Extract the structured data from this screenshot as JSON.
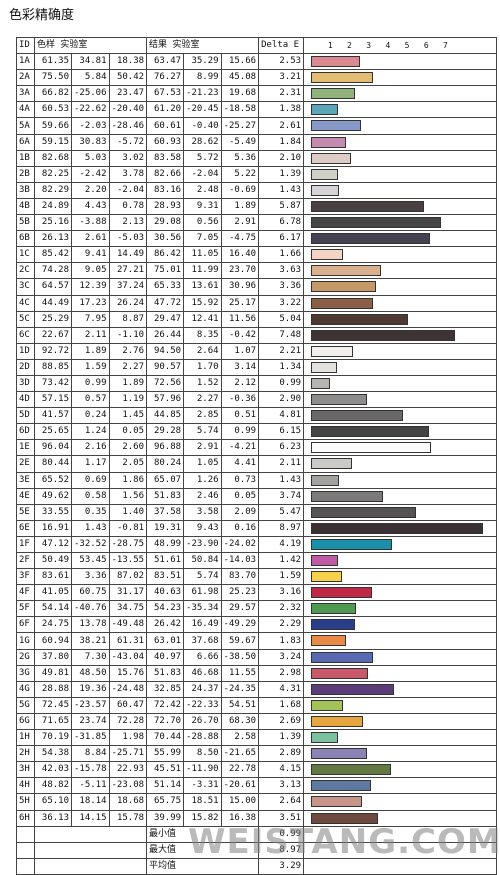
{
  "title": "色彩精确度",
  "watermark": "WEISTANG.COM",
  "headers": {
    "id": "ID",
    "target": "色样 实验室",
    "result": "结果 实验室",
    "delta": "Delta E"
  },
  "scale_ticks": [
    "1",
    "2",
    "3",
    "4",
    "5",
    "6",
    "7"
  ],
  "rows": [
    {
      "id": "1A",
      "t": [
        "61.35",
        "34.81",
        "18.38"
      ],
      "r": [
        "63.47",
        "35.29",
        "15.66"
      ],
      "de": "2.53",
      "color": "#d98a90"
    },
    {
      "id": "2A",
      "t": [
        "75.50",
        "5.84",
        "50.42"
      ],
      "r": [
        "76.27",
        "8.99",
        "45.08"
      ],
      "de": "3.21",
      "color": "#e2bc72"
    },
    {
      "id": "3A",
      "t": [
        "66.82",
        "-25.06",
        "23.47"
      ],
      "r": [
        "67.53",
        "-21.23",
        "19.68"
      ],
      "de": "2.31",
      "color": "#8fb37a"
    },
    {
      "id": "4A",
      "t": [
        "60.53",
        "-22.62",
        "-20.40"
      ],
      "r": [
        "61.20",
        "-20.45",
        "-18.58"
      ],
      "de": "1.38",
      "color": "#5ba5b8"
    },
    {
      "id": "5A",
      "t": [
        "59.66",
        "-2.03",
        "-28.46"
      ],
      "r": [
        "60.61",
        "-0.40",
        "-25.27"
      ],
      "de": "2.61",
      "color": "#8799c8"
    },
    {
      "id": "6A",
      "t": [
        "59.15",
        "30.83",
        "-5.72"
      ],
      "r": [
        "60.93",
        "28.62",
        "-5.49"
      ],
      "de": "1.84",
      "color": "#c58ab0"
    },
    {
      "id": "1B",
      "t": [
        "82.68",
        "5.03",
        "3.02"
      ],
      "r": [
        "83.58",
        "5.72",
        "5.36"
      ],
      "de": "2.10",
      "color": "#ddcdc6"
    },
    {
      "id": "2B",
      "t": [
        "82.25",
        "-2.42",
        "3.78"
      ],
      "r": [
        "82.66",
        "-2.04",
        "5.22"
      ],
      "de": "1.39",
      "color": "#cfd0c6"
    },
    {
      "id": "3B",
      "t": [
        "82.29",
        "2.20",
        "-2.04"
      ],
      "r": [
        "83.16",
        "2.48",
        "-0.69"
      ],
      "de": "1.43",
      "color": "#d6d2d6"
    },
    {
      "id": "4B",
      "t": [
        "24.89",
        "4.43",
        "0.78"
      ],
      "r": [
        "28.93",
        "9.31",
        "1.89"
      ],
      "de": "5.87",
      "color": "#4a4041"
    },
    {
      "id": "5B",
      "t": [
        "25.16",
        "-3.88",
        "2.13"
      ],
      "r": [
        "29.08",
        "0.56",
        "2.91"
      ],
      "de": "6.78",
      "color": "#464646"
    },
    {
      "id": "6B",
      "t": [
        "26.13",
        "2.61",
        "-5.03"
      ],
      "r": [
        "30.56",
        "7.05",
        "-4.75"
      ],
      "de": "6.17",
      "color": "#454254"
    },
    {
      "id": "1C",
      "t": [
        "85.42",
        "9.41",
        "14.49"
      ],
      "r": [
        "86.42",
        "11.05",
        "16.40"
      ],
      "de": "1.66",
      "color": "#f3d3c2"
    },
    {
      "id": "2C",
      "t": [
        "74.28",
        "9.05",
        "27.21"
      ],
      "r": [
        "75.01",
        "11.99",
        "23.70"
      ],
      "de": "3.63",
      "color": "#d8b08e"
    },
    {
      "id": "3C",
      "t": [
        "64.57",
        "12.39",
        "37.24"
      ],
      "r": [
        "65.33",
        "13.61",
        "30.96"
      ],
      "de": "3.36",
      "color": "#c59868"
    },
    {
      "id": "4C",
      "t": [
        "44.49",
        "17.23",
        "26.24"
      ],
      "r": [
        "47.72",
        "15.92",
        "25.17"
      ],
      "de": "3.22",
      "color": "#8a5f46"
    },
    {
      "id": "5C",
      "t": [
        "25.29",
        "7.95",
        "8.87"
      ],
      "r": [
        "29.47",
        "12.41",
        "11.56"
      ],
      "de": "5.04",
      "color": "#4e3a32"
    },
    {
      "id": "6C",
      "t": [
        "22.67",
        "2.11",
        "-1.10"
      ],
      "r": [
        "26.44",
        "8.35",
        "-0.42"
      ],
      "de": "7.48",
      "color": "#3f3434"
    },
    {
      "id": "1D",
      "t": [
        "92.72",
        "1.89",
        "2.76"
      ],
      "r": [
        "94.50",
        "2.64",
        "1.07"
      ],
      "de": "2.21",
      "color": "#f2efec"
    },
    {
      "id": "2D",
      "t": [
        "88.85",
        "1.59",
        "2.27"
      ],
      "r": [
        "90.57",
        "1.70",
        "3.14"
      ],
      "de": "1.34",
      "color": "#e3e2de"
    },
    {
      "id": "3D",
      "t": [
        "73.42",
        "0.99",
        "1.89"
      ],
      "r": [
        "72.56",
        "1.52",
        "2.12"
      ],
      "de": "0.99",
      "color": "#b5b4b1"
    },
    {
      "id": "4D",
      "t": [
        "57.15",
        "0.57",
        "1.19"
      ],
      "r": [
        "57.96",
        "2.27",
        "-0.36"
      ],
      "de": "2.90",
      "color": "#8d8c8a"
    },
    {
      "id": "5D",
      "t": [
        "41.57",
        "0.24",
        "1.45"
      ],
      "r": [
        "44.85",
        "2.85",
        "0.51"
      ],
      "de": "4.81",
      "color": "#6a6868"
    },
    {
      "id": "6D",
      "t": [
        "25.65",
        "1.24",
        "0.05"
      ],
      "r": [
        "29.28",
        "5.74",
        "0.99"
      ],
      "de": "6.15",
      "color": "#454343"
    },
    {
      "id": "1E",
      "t": [
        "96.04",
        "2.16",
        "2.60"
      ],
      "r": [
        "96.88",
        "2.91",
        "-4.21"
      ],
      "de": "6.23",
      "color": "#fbfbfb"
    },
    {
      "id": "2E",
      "t": [
        "80.44",
        "1.17",
        "2.05"
      ],
      "r": [
        "80.24",
        "1.05",
        "4.41"
      ],
      "de": "2.11",
      "color": "#cbcac7"
    },
    {
      "id": "3E",
      "t": [
        "65.52",
        "0.69",
        "1.86"
      ],
      "r": [
        "65.07",
        "1.26",
        "0.73"
      ],
      "de": "1.43",
      "color": "#a2a1a0"
    },
    {
      "id": "4E",
      "t": [
        "49.62",
        "0.58",
        "1.56"
      ],
      "r": [
        "51.83",
        "2.46",
        "0.05"
      ],
      "de": "3.74",
      "color": "#7b7a79"
    },
    {
      "id": "5E",
      "t": [
        "33.55",
        "0.35",
        "1.40"
      ],
      "r": [
        "37.58",
        "3.58",
        "2.09"
      ],
      "de": "5.47",
      "color": "#555353"
    },
    {
      "id": "6E",
      "t": [
        "16.91",
        "1.43",
        "-0.81"
      ],
      "r": [
        "19.31",
        "9.43",
        "0.16"
      ],
      "de": "8.97",
      "color": "#3b3033"
    },
    {
      "id": "1F",
      "t": [
        "47.12",
        "-32.52",
        "-28.75"
      ],
      "r": [
        "48.99",
        "-23.90",
        "-24.02"
      ],
      "de": "4.19",
      "color": "#1b8fa8"
    },
    {
      "id": "2F",
      "t": [
        "50.49",
        "53.45",
        "-13.55"
      ],
      "r": [
        "51.61",
        "50.84",
        "-14.03"
      ],
      "de": "1.42",
      "color": "#c15aa5"
    },
    {
      "id": "3F",
      "t": [
        "83.61",
        "3.36",
        "87.02"
      ],
      "r": [
        "83.51",
        "5.74",
        "83.70"
      ],
      "de": "1.59",
      "color": "#f5d24a"
    },
    {
      "id": "4F",
      "t": [
        "41.05",
        "60.75",
        "31.17"
      ],
      "r": [
        "40.63",
        "61.98",
        "25.23"
      ],
      "de": "3.16",
      "color": "#c02848"
    },
    {
      "id": "5F",
      "t": [
        "54.14",
        "-40.76",
        "34.75"
      ],
      "r": [
        "54.23",
        "-35.34",
        "29.57"
      ],
      "de": "2.32",
      "color": "#4e9a4e"
    },
    {
      "id": "6F",
      "t": [
        "24.75",
        "13.78",
        "-49.48"
      ],
      "r": [
        "26.42",
        "16.49",
        "-49.29"
      ],
      "de": "2.29",
      "color": "#2a3f8c"
    },
    {
      "id": "1G",
      "t": [
        "60.94",
        "38.21",
        "61.31"
      ],
      "r": [
        "63.01",
        "37.68",
        "59.67"
      ],
      "de": "1.83",
      "color": "#e88a45"
    },
    {
      "id": "2G",
      "t": [
        "37.80",
        "7.30",
        "-43.04"
      ],
      "r": [
        "40.97",
        "6.66",
        "-38.50"
      ],
      "de": "3.24",
      "color": "#5a6ab0"
    },
    {
      "id": "3G",
      "t": [
        "49.81",
        "48.50",
        "15.76"
      ],
      "r": [
        "51.83",
        "46.68",
        "11.55"
      ],
      "de": "2.98",
      "color": "#c8586a"
    },
    {
      "id": "4G",
      "t": [
        "28.88",
        "19.36",
        "-24.48"
      ],
      "r": [
        "32.85",
        "24.37",
        "-24.35"
      ],
      "de": "4.31",
      "color": "#5b3d7a"
    },
    {
      "id": "5G",
      "t": [
        "72.45",
        "-23.57",
        "60.47"
      ],
      "r": [
        "72.42",
        "-22.33",
        "54.51"
      ],
      "de": "1.68",
      "color": "#a3c25a"
    },
    {
      "id": "6G",
      "t": [
        "71.65",
        "23.74",
        "72.28"
      ],
      "r": [
        "72.70",
        "26.70",
        "68.30"
      ],
      "de": "2.69",
      "color": "#e8a640"
    },
    {
      "id": "1H",
      "t": [
        "70.19",
        "-31.85",
        "1.98"
      ],
      "r": [
        "70.44",
        "-28.88",
        "2.58"
      ],
      "de": "1.39",
      "color": "#7cc1a0"
    },
    {
      "id": "2H",
      "t": [
        "54.38",
        "8.84",
        "-25.71"
      ],
      "r": [
        "55.99",
        "8.50",
        "-21.65"
      ],
      "de": "2.89",
      "color": "#8a84b4"
    },
    {
      "id": "3H",
      "t": [
        "42.03",
        "-15.78",
        "22.93"
      ],
      "r": [
        "45.51",
        "-11.90",
        "22.78"
      ],
      "de": "4.15",
      "color": "#627a42"
    },
    {
      "id": "4H",
      "t": [
        "48.82",
        "-5.11",
        "-23.08"
      ],
      "r": [
        "51.14",
        "-3.31",
        "-20.61"
      ],
      "de": "3.13",
      "color": "#5e7aa0"
    },
    {
      "id": "5H",
      "t": [
        "65.10",
        "18.14",
        "18.68"
      ],
      "r": [
        "65.75",
        "18.51",
        "15.00"
      ],
      "de": "2.64",
      "color": "#c7958a"
    },
    {
      "id": "6H",
      "t": [
        "36.13",
        "14.15",
        "15.78"
      ],
      "r": [
        "39.99",
        "15.82",
        "16.38"
      ],
      "de": "3.51",
      "color": "#6e4a3e"
    }
  ],
  "summary": [
    {
      "label": "最小值",
      "value": "0.99"
    },
    {
      "label": "最大值",
      "value": "8.97"
    },
    {
      "label": "平均值",
      "value": "3.29"
    }
  ]
}
